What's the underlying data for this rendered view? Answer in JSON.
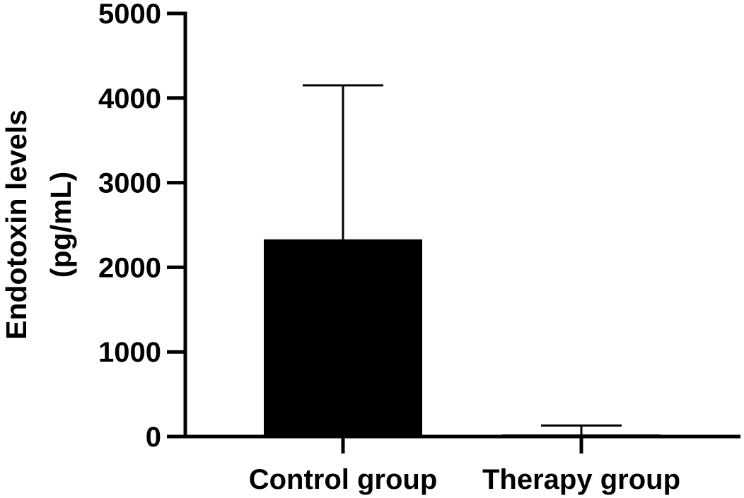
{
  "chart_data": {
    "type": "bar",
    "title": "",
    "xlabel": "",
    "ylabel_lines": [
      "Endotoxin levels",
      "(pg/mL)"
    ],
    "categories": [
      "Control group",
      "Therapy group"
    ],
    "values": [
      2330,
      25
    ],
    "error_upper": [
      4150,
      130
    ],
    "ylim": [
      0,
      5000
    ],
    "yticks": [
      0,
      1000,
      2000,
      3000,
      4000,
      5000
    ],
    "ytick_labels": [
      "0",
      "1000",
      "2000",
      "3000",
      "4000",
      "5000"
    ],
    "grid": false,
    "legend": "none",
    "bar_color": "#000000"
  }
}
